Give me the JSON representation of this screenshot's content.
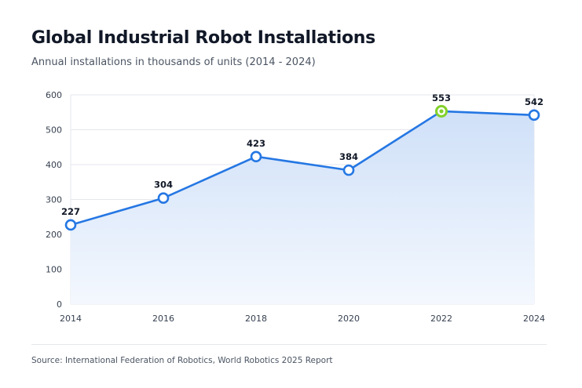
{
  "chart_data": {
    "type": "area",
    "title": "Global Industrial Robot Installations",
    "subtitle": "Annual installations in thousands of units (2014 - 2024)",
    "x": [
      "2014",
      "2016",
      "2018",
      "2020",
      "2022",
      "2024"
    ],
    "series": [
      {
        "name": "Installations (thousands of units)",
        "values": [
          227,
          304,
          423,
          384,
          553,
          542
        ]
      }
    ],
    "data_labels": [
      "227",
      "304",
      "423",
      "384",
      "553",
      "542"
    ],
    "highlight_category": "2022",
    "ylim": [
      0,
      600
    ],
    "yticks": [
      0,
      100,
      200,
      300,
      400,
      500,
      600
    ],
    "xlabel": "",
    "ylabel": "",
    "grid": true,
    "source": "Source: International Federation of Robotics, World Robotics 2025 Report"
  },
  "colors": {
    "line": "#2577e3",
    "marker_fill": "#ffffff",
    "highlight_marker": "#82d12a",
    "area_top": "#cfe0f8",
    "area_bottom": "#f4f8fe",
    "grid": "#e4e7ec",
    "axis_text": "#374151",
    "label_text": "#111827"
  }
}
